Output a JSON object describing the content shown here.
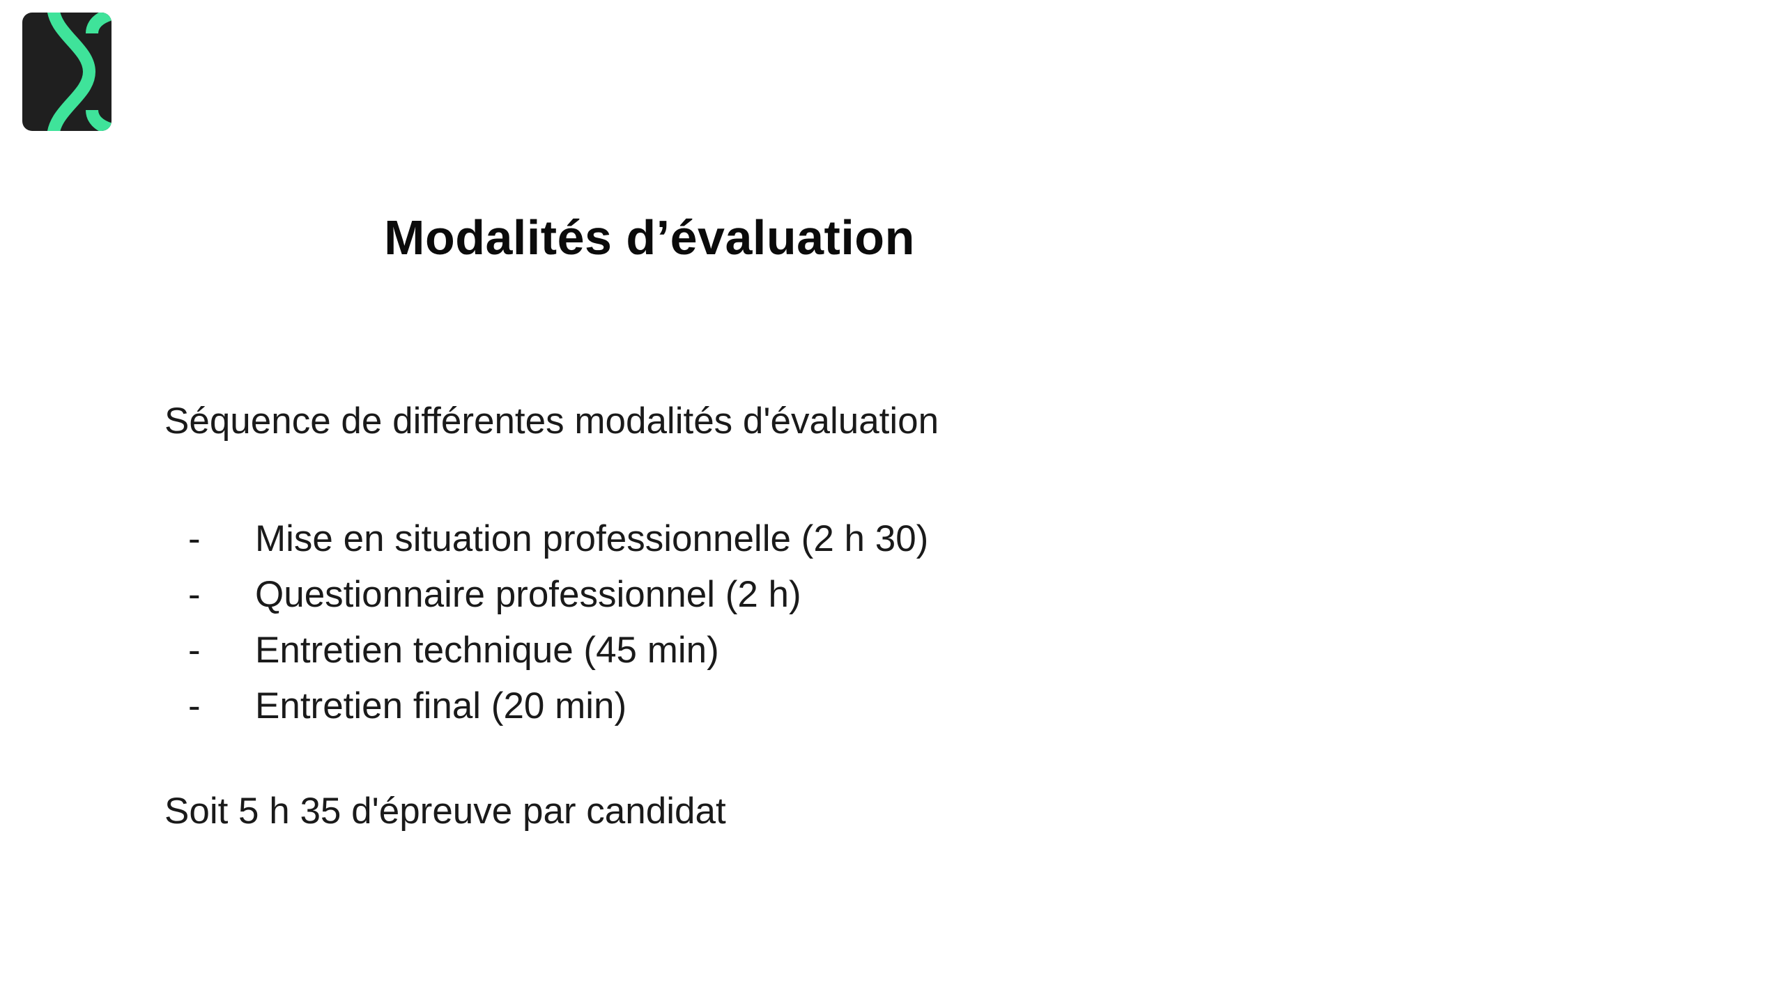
{
  "slide": {
    "logo": {
      "icon": "brand-logo-icon",
      "background_color": "#1f1f1f",
      "accent_color": "#3fe39a"
    },
    "title": "Modalités d’évaluation",
    "intro": "Séquence de différentes modalités d'évaluation",
    "items": [
      {
        "bullet": "-",
        "text": "Mise en situation professionnelle (2 h 30)"
      },
      {
        "bullet": "-",
        "text": "Questionnaire professionnel (2 h)"
      },
      {
        "bullet": "-",
        "text": "Entretien technique (45 min)"
      },
      {
        "bullet": "-",
        "text": "Entretien final (20 min)"
      }
    ],
    "summary": "Soit 5 h 35 d'épreuve par candidat"
  }
}
